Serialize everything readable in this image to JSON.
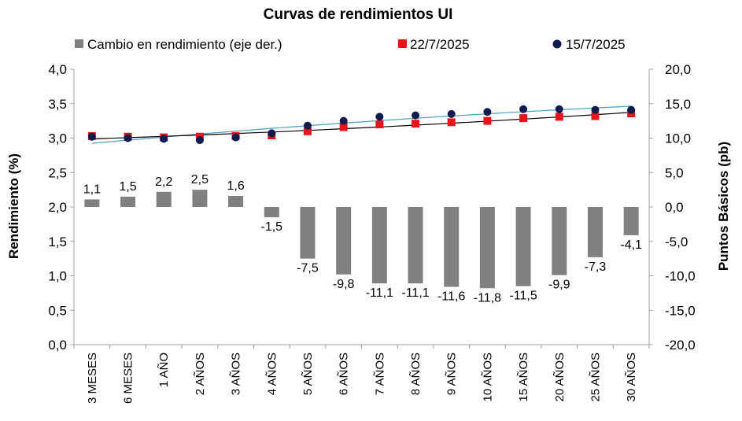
{
  "chart_data": {
    "type": "bar",
    "title": "Curvas de rendimientos UI",
    "categories": [
      "3 MESES",
      "6 MESES",
      "1 AÑO",
      "2 AÑOS",
      "3 AÑOS",
      "4 AÑOS",
      "5 AÑOS",
      "6 AÑOS",
      "7 AÑOS",
      "8 AÑOS",
      "9 AÑOS",
      "10 AÑOS",
      "15 AÑOS",
      "20 AÑOS",
      "25 AÑOS",
      "30 AÑOS"
    ],
    "ylabel": "Rendimiento (%)",
    "y2label": "Puntos Básicos (pb)",
    "ylim": [
      0,
      4
    ],
    "y2lim": [
      -20,
      20
    ],
    "yticks": [
      "0,0",
      "0,5",
      "1,0",
      "1,5",
      "2,0",
      "2,5",
      "3,0",
      "3,5",
      "4,0"
    ],
    "y2ticks": [
      "-20,0",
      "-15,0",
      "-10,0",
      "-5,0",
      "0,0",
      "5,0",
      "10,0",
      "15,0",
      "20,0"
    ],
    "legend_position": "top",
    "series": [
      {
        "name": "Cambio en rendimiento (eje der.)",
        "type": "bar",
        "axis": "right",
        "color": "#808080",
        "values": [
          1.1,
          1.5,
          2.2,
          2.5,
          1.6,
          -1.5,
          -7.5,
          -9.8,
          -11.1,
          -11.1,
          -11.6,
          -11.8,
          -11.5,
          -9.9,
          -7.3,
          -4.1
        ],
        "labels": [
          "1,1",
          "1,5",
          "2,2",
          "2,5",
          "1,6",
          "-1,5",
          "-7,5",
          "-9,8",
          "-11,1",
          "-11,1",
          "-11,6",
          "-11,8",
          "-11,5",
          "-9,9",
          "-7,3",
          "-4,1"
        ]
      },
      {
        "name": "22/7/2025",
        "type": "scatter",
        "marker": "square",
        "axis": "left",
        "color": "#e8141c",
        "values": [
          3.03,
          3.02,
          3.01,
          3.02,
          3.03,
          3.04,
          3.1,
          3.16,
          3.2,
          3.21,
          3.23,
          3.25,
          3.29,
          3.31,
          3.32,
          3.36
        ],
        "trend_color": "#000000"
      },
      {
        "name": "15/7/2025",
        "type": "scatter",
        "marker": "circle",
        "axis": "left",
        "color": "#0d1b4f",
        "values": [
          3.02,
          3.0,
          2.99,
          2.97,
          3.01,
          3.07,
          3.18,
          3.25,
          3.31,
          3.33,
          3.35,
          3.38,
          3.42,
          3.42,
          3.41,
          3.41
        ],
        "trend_color": "#4a9fc8"
      }
    ]
  }
}
